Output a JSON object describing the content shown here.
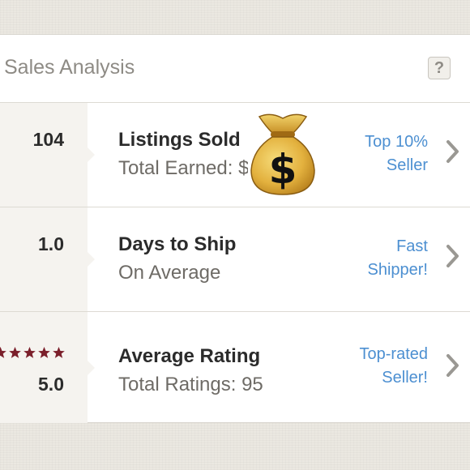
{
  "header": {
    "title": "Sales Analysis",
    "help_label": "?"
  },
  "rows": [
    {
      "value": "104",
      "label": "Listings Sold",
      "sub": "Total Earned: $",
      "badge_line1": "Top 10%",
      "badge_line2": "Seller"
    },
    {
      "value": "1.0",
      "label": "Days to Ship",
      "sub": "On Average",
      "badge_line1": "Fast",
      "badge_line2": "Shipper!"
    },
    {
      "value": "5.0",
      "label": "Average Rating",
      "sub": "Total Ratings: 95",
      "badge_line1": "Top-rated",
      "badge_line2": "Seller!",
      "stars": 5
    }
  ],
  "icons": {
    "help": "question-mark-icon",
    "chevron": "chevron-right-icon",
    "star": "star-icon",
    "emoji": "money-bag-icon"
  },
  "colors": {
    "accent": "#4c8fd1",
    "star": "#7b1f2b",
    "text": "#2b2b2b",
    "muted": "#6e6b66"
  }
}
